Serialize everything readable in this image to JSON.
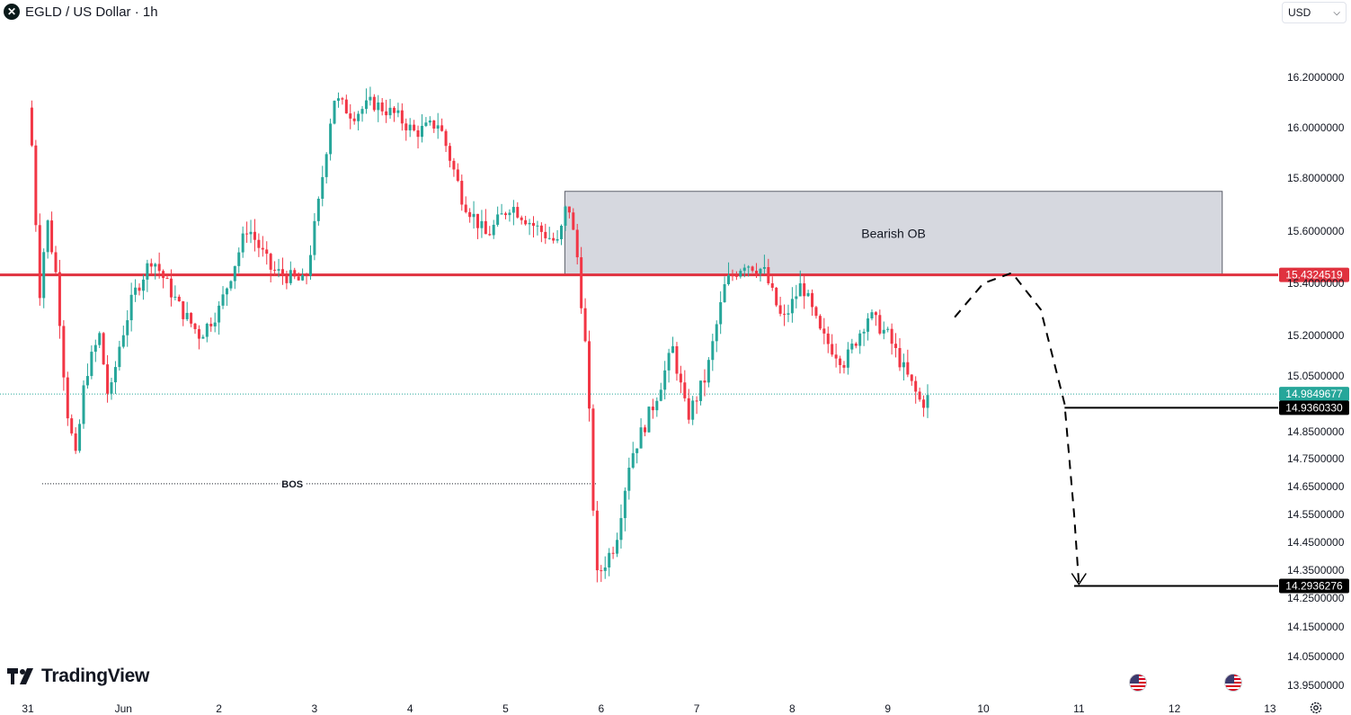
{
  "header": {
    "title": "EGLD / US Dollar · 1h",
    "logo_glyph": "✕"
  },
  "currency": {
    "value": "USD"
  },
  "brand": {
    "name": "TradingView"
  },
  "icons": {
    "settings": "gear-icon",
    "flags": "us-flag-icon"
  },
  "colors": {
    "up": "#26a69a",
    "down": "#f23645",
    "resistance_line": "#e0323f",
    "zone_fill": "#d1d4dc",
    "current_price_tag": "#26a69a",
    "target_tag": "#000000"
  },
  "chart_data": {
    "type": "candlestick",
    "title": "EGLD / US Dollar · 1h",
    "ylim": [
      13.93,
      16.23
    ],
    "y_ticks": [
      "16.2000000",
      "16.0000000",
      "15.8000000",
      "15.6000000",
      "15.4000000",
      "15.2000000",
      "15.0500000",
      "14.8500000",
      "14.7500000",
      "14.6500000",
      "14.5500000",
      "14.4500000",
      "14.3500000",
      "14.2500000",
      "14.1500000",
      "14.0500000",
      "13.9500000"
    ],
    "y_tick_values": [
      16.2,
      16.0,
      15.8,
      15.6,
      15.4,
      15.2,
      15.05,
      14.85,
      14.75,
      14.65,
      14.55,
      14.45,
      14.35,
      14.25,
      14.15,
      14.05,
      13.95
    ],
    "x_labels": [
      "31",
      "Jun",
      "2",
      "3",
      "4",
      "5",
      "6",
      "7",
      "8",
      "9",
      "10",
      "11",
      "12",
      "13"
    ],
    "series": [
      {
        "name": "EGLD/USD",
        "anchors": [
          {
            "day": 0.0,
            "price": 16.08
          },
          {
            "day": 0.05,
            "price": 15.9
          },
          {
            "day": 0.12,
            "price": 15.35
          },
          {
            "day": 0.2,
            "price": 15.65
          },
          {
            "day": 0.3,
            "price": 15.42
          },
          {
            "day": 0.4,
            "price": 14.95
          },
          {
            "day": 0.5,
            "price": 14.75
          },
          {
            "day": 0.6,
            "price": 15.05
          },
          {
            "day": 0.75,
            "price": 15.2
          },
          {
            "day": 0.85,
            "price": 14.95
          },
          {
            "day": 0.95,
            "price": 15.15
          },
          {
            "day": 1.1,
            "price": 15.35
          },
          {
            "day": 1.3,
            "price": 15.5
          },
          {
            "day": 1.45,
            "price": 15.4
          },
          {
            "day": 1.6,
            "price": 15.3
          },
          {
            "day": 1.8,
            "price": 15.2
          },
          {
            "day": 2.0,
            "price": 15.3
          },
          {
            "day": 2.3,
            "price": 15.62
          },
          {
            "day": 2.55,
            "price": 15.45
          },
          {
            "day": 2.9,
            "price": 15.4
          },
          {
            "day": 3.05,
            "price": 15.72
          },
          {
            "day": 3.2,
            "price": 16.12
          },
          {
            "day": 3.4,
            "price": 16.05
          },
          {
            "day": 3.6,
            "price": 16.1
          },
          {
            "day": 3.85,
            "price": 16.05
          },
          {
            "day": 4.05,
            "price": 15.98
          },
          {
            "day": 4.3,
            "price": 16.02
          },
          {
            "day": 4.55,
            "price": 15.72
          },
          {
            "day": 4.8,
            "price": 15.58
          },
          {
            "day": 5.05,
            "price": 15.7
          },
          {
            "day": 5.3,
            "price": 15.62
          },
          {
            "day": 5.55,
            "price": 15.55
          },
          {
            "day": 5.65,
            "price": 15.72
          },
          {
            "day": 5.75,
            "price": 15.5
          },
          {
            "day": 5.85,
            "price": 15.1
          },
          {
            "day": 5.95,
            "price": 14.32
          },
          {
            "day": 6.15,
            "price": 14.45
          },
          {
            "day": 6.3,
            "price": 14.75
          },
          {
            "day": 6.55,
            "price": 14.95
          },
          {
            "day": 6.75,
            "price": 15.15
          },
          {
            "day": 6.9,
            "price": 14.9
          },
          {
            "day": 7.1,
            "price": 15.05
          },
          {
            "day": 7.3,
            "price": 15.4
          },
          {
            "day": 7.5,
            "price": 15.48
          },
          {
            "day": 7.7,
            "price": 15.45
          },
          {
            "day": 7.9,
            "price": 15.25
          },
          {
            "day": 8.1,
            "price": 15.4
          },
          {
            "day": 8.3,
            "price": 15.2
          },
          {
            "day": 8.55,
            "price": 15.1
          },
          {
            "day": 8.8,
            "price": 15.28
          },
          {
            "day": 9.0,
            "price": 15.2
          },
          {
            "day": 9.2,
            "price": 15.05
          },
          {
            "day": 9.35,
            "price": 14.95
          },
          {
            "day": 9.42,
            "price": 14.97
          }
        ]
      }
    ],
    "annotations": {
      "bearish_ob": {
        "label": "Bearish OB",
        "top": 15.75,
        "bottom": 15.43,
        "from_day": 5.62,
        "to_day": 12.5
      },
      "resistance": {
        "value": 15.4324519,
        "label": "15.4324519"
      },
      "current_price": {
        "value": 14.9849677,
        "label": "14.9849677"
      },
      "target_1": {
        "value": 14.936033,
        "label": "14.9360330",
        "from_day": 10.85
      },
      "target_2": {
        "value": 14.2936276,
        "label": "14.2936276",
        "from_day": 10.95
      },
      "bos": {
        "label": "BOS",
        "value": 14.66,
        "from_day": 0.15,
        "to_day": 5.95
      },
      "projection": [
        {
          "day": 9.7,
          "price": 15.27
        },
        {
          "day": 10.0,
          "price": 15.4
        },
        {
          "day": 10.3,
          "price": 15.44
        },
        {
          "day": 10.6,
          "price": 15.3
        },
        {
          "day": 10.85,
          "price": 14.95
        },
        {
          "day": 10.95,
          "price": 14.55
        },
        {
          "day": 11.0,
          "price": 14.3
        }
      ]
    }
  }
}
